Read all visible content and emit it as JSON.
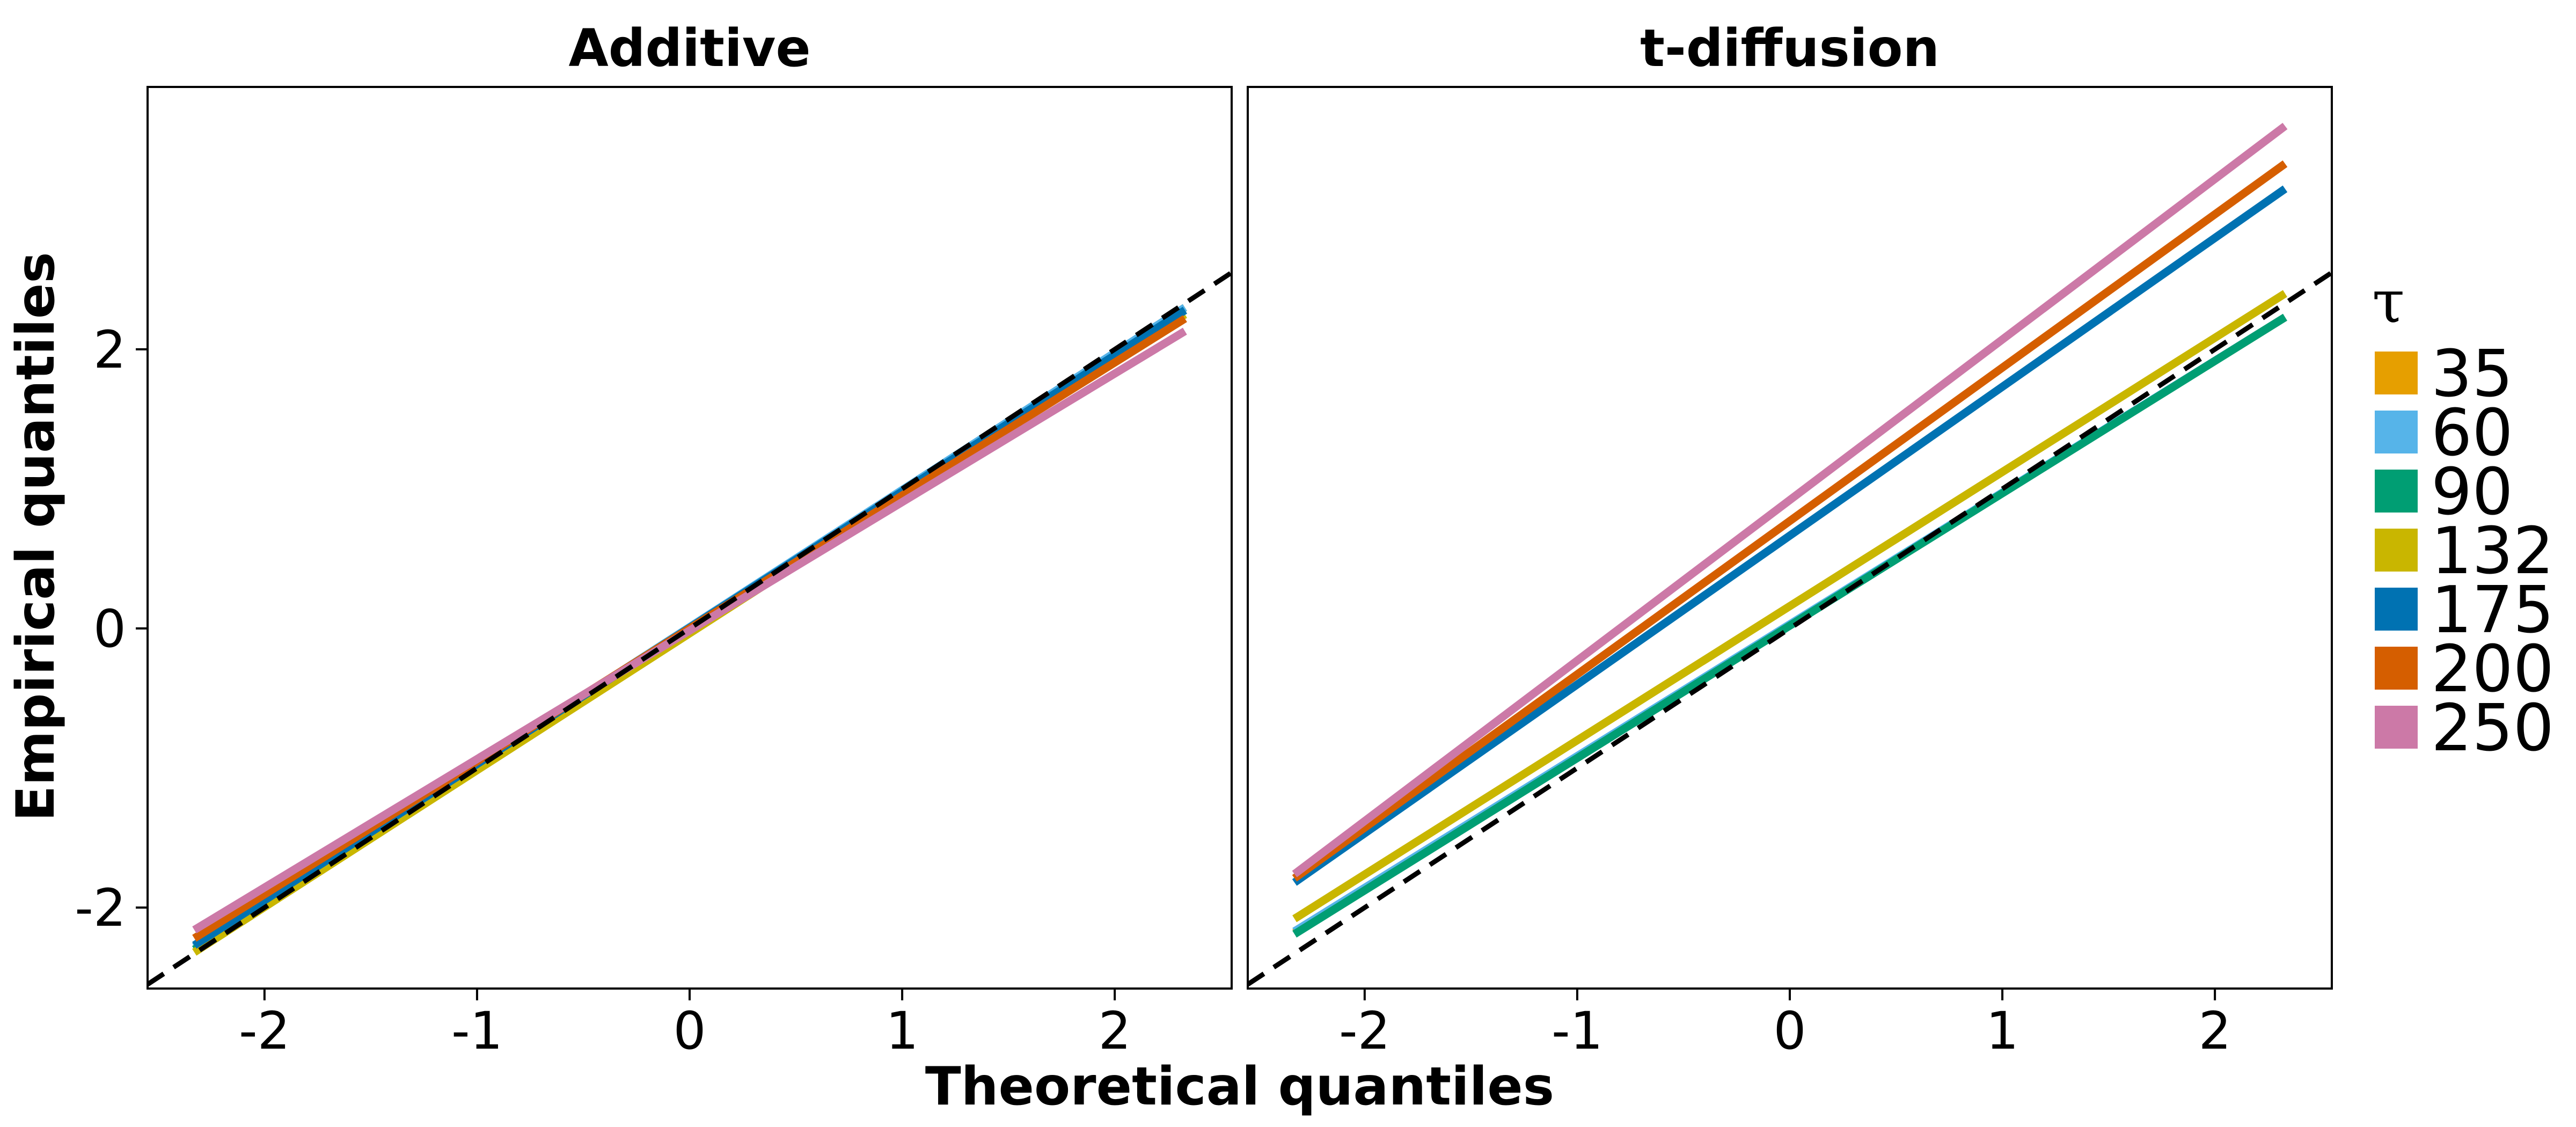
{
  "chart_data": {
    "type": "line",
    "ylabel": "Empirical quantiles",
    "xlabel": "Theoretical quantiles",
    "xlim": [
      -2.55,
      2.55
    ],
    "ylim": [
      -2.58,
      3.88
    ],
    "x_ticks": [
      -2,
      -1,
      0,
      1,
      2
    ],
    "x_tick_labels": [
      "-2",
      "-1",
      "0",
      "1",
      "2"
    ],
    "y_ticks": [
      -2,
      0,
      2
    ],
    "y_tick_labels": [
      "-2",
      "0",
      "2"
    ],
    "grid": false,
    "reference_line": {
      "style": "dashed",
      "color": "#000000",
      "slope": 1,
      "intercept": 0
    },
    "legend": {
      "title": "τ",
      "placement": "right",
      "entries": [
        "35",
        "60",
        "90",
        "132",
        "175",
        "200",
        "250"
      ]
    },
    "panels": [
      {
        "title": "Additive",
        "series": [
          {
            "name": "35",
            "color": "#E69F00",
            "x": [
              -2.33,
              2.33
            ],
            "y": [
              -2.3,
              2.3
            ]
          },
          {
            "name": "60",
            "color": "#56B4E9",
            "x": [
              -2.33,
              2.33
            ],
            "y": [
              -2.28,
              2.3
            ]
          },
          {
            "name": "90",
            "color": "#009E73",
            "x": [
              -2.33,
              2.33
            ],
            "y": [
              -2.3,
              2.28
            ]
          },
          {
            "name": "132",
            "color": "#C9B600",
            "x": [
              -2.33,
              2.33
            ],
            "y": [
              -2.32,
              2.25
            ]
          },
          {
            "name": "175",
            "color": "#0072B2",
            "x": [
              -2.33,
              2.33
            ],
            "y": [
              -2.27,
              2.28
            ]
          },
          {
            "name": "200",
            "color": "#D55E00",
            "x": [
              -2.33,
              2.33
            ],
            "y": [
              -2.22,
              2.22
            ]
          },
          {
            "name": "250",
            "color": "#CC79A7",
            "x": [
              -2.33,
              2.33
            ],
            "y": [
              -2.16,
              2.13
            ]
          }
        ]
      },
      {
        "title": "t-diffusion",
        "series": [
          {
            "name": "35",
            "color": "#E69F00",
            "x": [
              -2.33,
              2.33
            ],
            "y": [
              -2.18,
              2.23
            ]
          },
          {
            "name": "60",
            "color": "#56B4E9",
            "x": [
              -2.33,
              2.33
            ],
            "y": [
              -2.17,
              2.23
            ]
          },
          {
            "name": "90",
            "color": "#009E73",
            "x": [
              -2.33,
              2.33
            ],
            "y": [
              -2.19,
              2.23
            ]
          },
          {
            "name": "132",
            "color": "#C9B600",
            "x": [
              -2.33,
              2.33
            ],
            "y": [
              -2.08,
              2.4
            ]
          },
          {
            "name": "175",
            "color": "#0072B2",
            "x": [
              -2.33,
              2.33
            ],
            "y": [
              -1.82,
              3.15
            ]
          },
          {
            "name": "200",
            "color": "#D55E00",
            "x": [
              -2.33,
              2.33
            ],
            "y": [
              -1.79,
              3.33
            ]
          },
          {
            "name": "250",
            "color": "#CC79A7",
            "x": [
              -2.33,
              2.33
            ],
            "y": [
              -1.76,
              3.6
            ]
          }
        ]
      }
    ]
  }
}
